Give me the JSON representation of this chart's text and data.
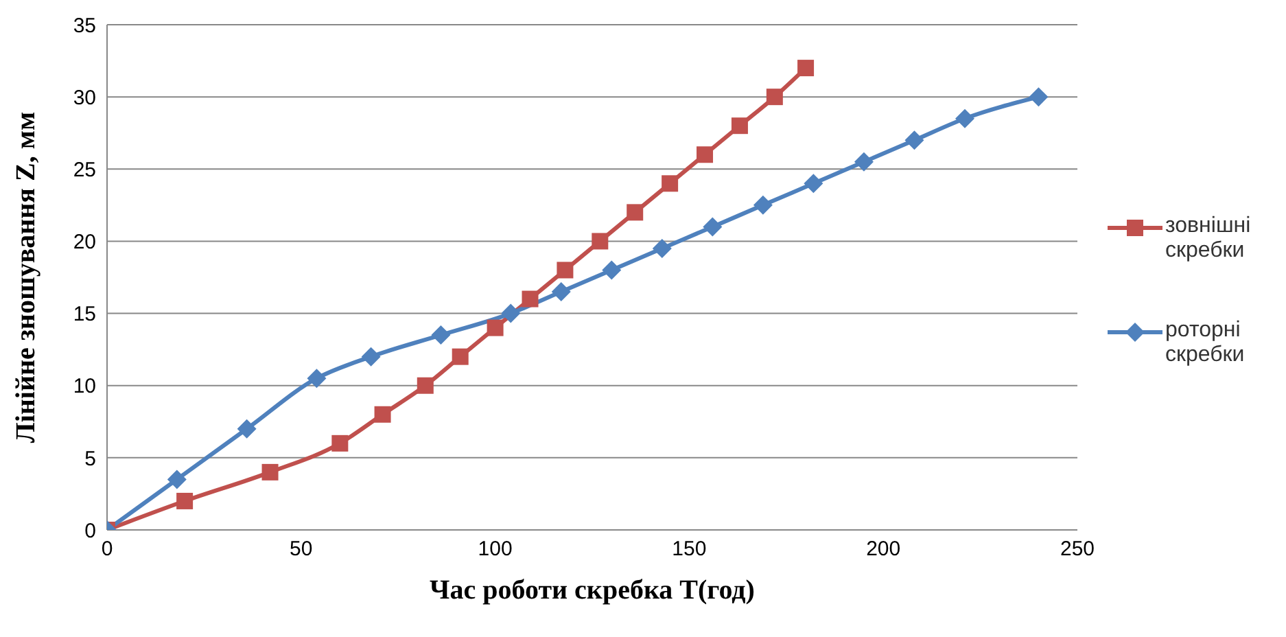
{
  "chart_data": {
    "type": "line",
    "xlabel": "Час роботи скребка T(год)",
    "ylabel": "Лінійне зношування Z, мм",
    "xlim": [
      0,
      250
    ],
    "xticks": [
      0,
      50,
      100,
      150,
      200,
      250
    ],
    "ylim": [
      0,
      35
    ],
    "yticks": [
      0,
      5,
      10,
      15,
      20,
      25,
      30,
      35
    ],
    "grid": "y",
    "legend": "right",
    "line_style": "solid",
    "series": [
      {
        "name": "зовнішні скребки",
        "color": "#c0504d",
        "marker": "square",
        "x": [
          0,
          20,
          42,
          60,
          71,
          82,
          91,
          100,
          109,
          118,
          127,
          136,
          145,
          154,
          163,
          172,
          180
        ],
        "values": [
          0,
          2,
          4,
          6,
          8,
          10,
          12,
          14,
          16,
          18,
          20,
          22,
          24,
          26,
          28,
          30,
          32
        ]
      },
      {
        "name": "роторні скребки",
        "color": "#4f81bd",
        "marker": "diamond",
        "x": [
          0,
          18,
          36,
          54,
          68,
          86,
          104,
          117,
          130,
          143,
          156,
          169,
          182,
          195,
          208,
          221,
          240
        ],
        "values": [
          0,
          3.5,
          7,
          10.5,
          12,
          13.5,
          15,
          16.5,
          18,
          19.5,
          21,
          22.5,
          24,
          25.5,
          27,
          28.5,
          30
        ]
      }
    ]
  }
}
